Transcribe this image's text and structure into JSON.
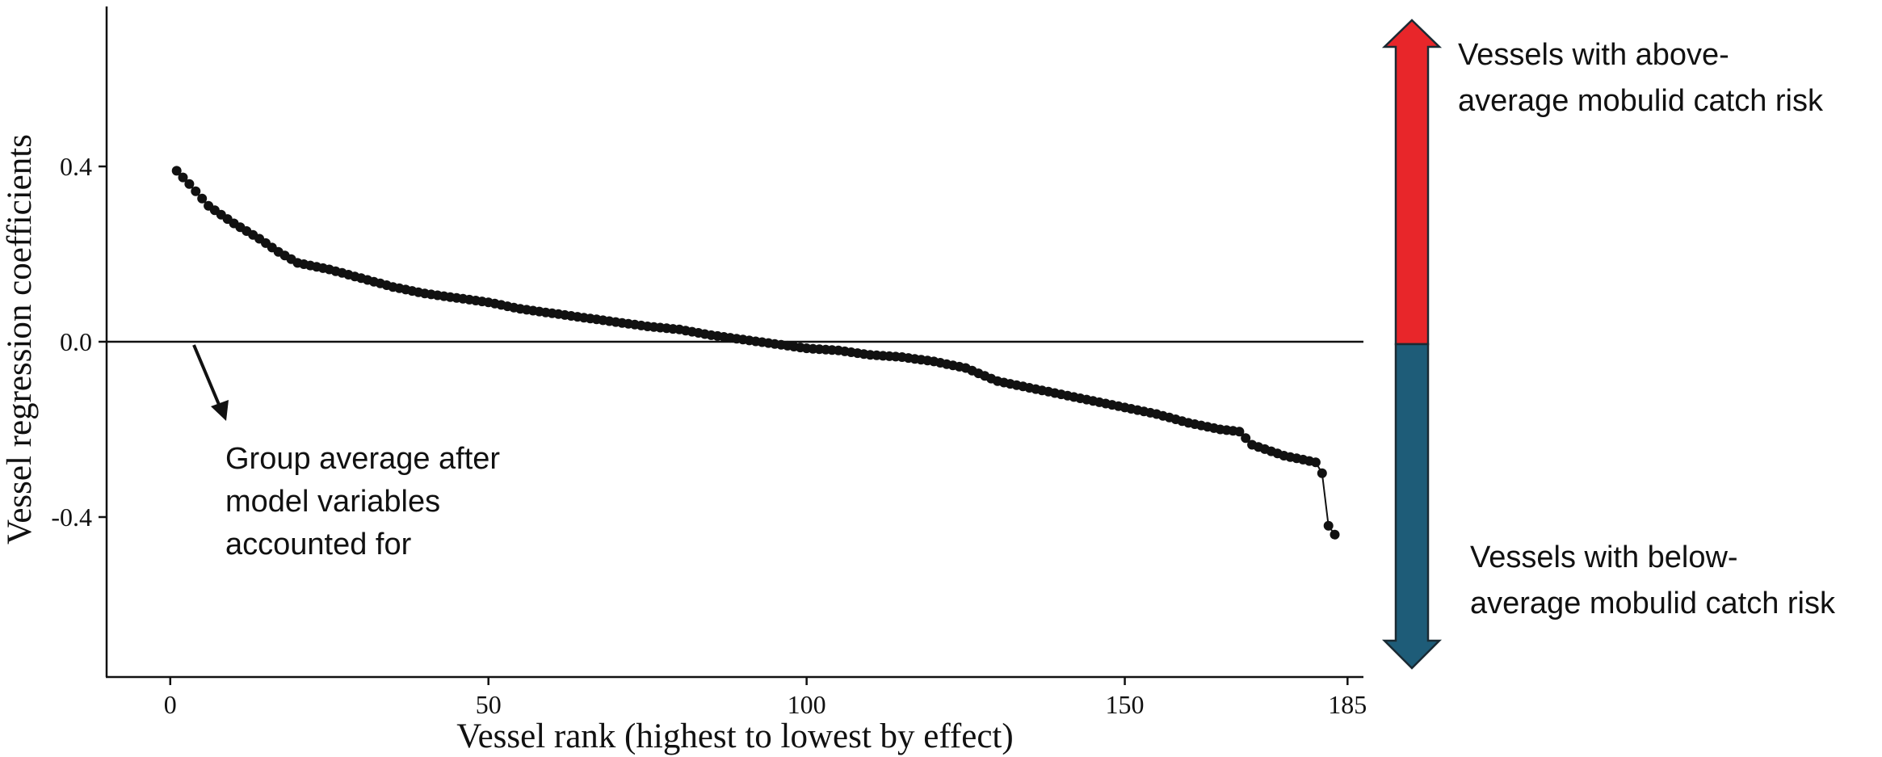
{
  "chart_data": {
    "type": "line",
    "title": "",
    "xlabel": "Vessel rank (highest to lowest by effect)",
    "ylabel": "Vessel regression coefficients",
    "xlim": [
      -10,
      187.5
    ],
    "ylim": [
      -0.765,
      0.765
    ],
    "xticks": [
      0,
      50,
      100,
      150,
      185
    ],
    "yticks": [
      0.4,
      0.0,
      -0.4
    ],
    "xtick_labels": [
      "0",
      "50",
      "100",
      "150",
      "185"
    ],
    "ytick_labels": [
      "0.4",
      "0.0",
      "-0.4"
    ],
    "reference_line": 0.0,
    "grid": false,
    "legend": "none",
    "anchors": [
      [
        1,
        0.39
      ],
      [
        3,
        0.36
      ],
      [
        6,
        0.31
      ],
      [
        10,
        0.27
      ],
      [
        14,
        0.235
      ],
      [
        17,
        0.205
      ],
      [
        20,
        0.18
      ],
      [
        25,
        0.165
      ],
      [
        30,
        0.145
      ],
      [
        35,
        0.125
      ],
      [
        40,
        0.11
      ],
      [
        45,
        0.1
      ],
      [
        50,
        0.09
      ],
      [
        55,
        0.075
      ],
      [
        60,
        0.065
      ],
      [
        65,
        0.055
      ],
      [
        70,
        0.045
      ],
      [
        75,
        0.035
      ],
      [
        80,
        0.028
      ],
      [
        85,
        0.015
      ],
      [
        90,
        0.005
      ],
      [
        95,
        -0.005
      ],
      [
        100,
        -0.015
      ],
      [
        105,
        -0.02
      ],
      [
        110,
        -0.03
      ],
      [
        115,
        -0.035
      ],
      [
        120,
        -0.045
      ],
      [
        125,
        -0.06
      ],
      [
        130,
        -0.09
      ],
      [
        135,
        -0.105
      ],
      [
        140,
        -0.12
      ],
      [
        145,
        -0.135
      ],
      [
        150,
        -0.15
      ],
      [
        155,
        -0.165
      ],
      [
        160,
        -0.185
      ],
      [
        165,
        -0.2
      ],
      [
        168,
        -0.205
      ],
      [
        170,
        -0.235
      ],
      [
        175,
        -0.26
      ],
      [
        180,
        -0.275
      ],
      [
        181,
        -0.3
      ],
      [
        182,
        -0.42
      ],
      [
        183,
        -0.44
      ]
    ],
    "n_points": 183,
    "line_color": "#111111",
    "marker_color": "#111111"
  },
  "annotations": {
    "group_average": [
      "Group average after",
      "model variables",
      "accounted for"
    ],
    "above": [
      "Vessels with above-",
      "average mobulid catch risk"
    ],
    "below": [
      "Vessels with below-",
      "average mobulid catch risk"
    ]
  },
  "colors": {
    "above_arrow": "#E8262A",
    "below_arrow": "#1E5C78",
    "arrow_outline": "#1a2a33",
    "axis": "#111111"
  }
}
